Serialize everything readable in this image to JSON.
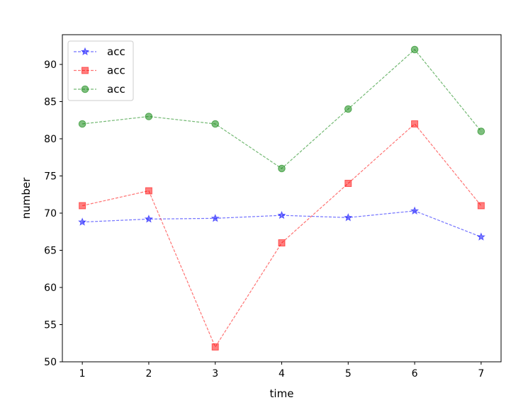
{
  "chart_data": {
    "type": "line",
    "title": "",
    "xlabel": "time",
    "ylabel": "number",
    "x": [
      1,
      2,
      3,
      4,
      5,
      6,
      7
    ],
    "xlim": [
      0.7,
      7.3
    ],
    "ylim": [
      50,
      94
    ],
    "xticks": [
      1,
      2,
      3,
      4,
      5,
      6,
      7
    ],
    "yticks": [
      50,
      55,
      60,
      65,
      70,
      75,
      80,
      85,
      90
    ],
    "grid": false,
    "legend": "top-left",
    "series": [
      {
        "name": "acc",
        "color": "#0000ff",
        "marker": "star",
        "values": [
          68.8,
          69.2,
          69.3,
          69.7,
          69.4,
          70.3,
          66.8
        ]
      },
      {
        "name": "acc",
        "color": "#ff0000",
        "marker": "square",
        "values": [
          71,
          73,
          52,
          66,
          74,
          82,
          71
        ]
      },
      {
        "name": "acc",
        "color": "#008000",
        "marker": "circle",
        "values": [
          82,
          83,
          82,
          76,
          84,
          92,
          81
        ]
      }
    ]
  }
}
